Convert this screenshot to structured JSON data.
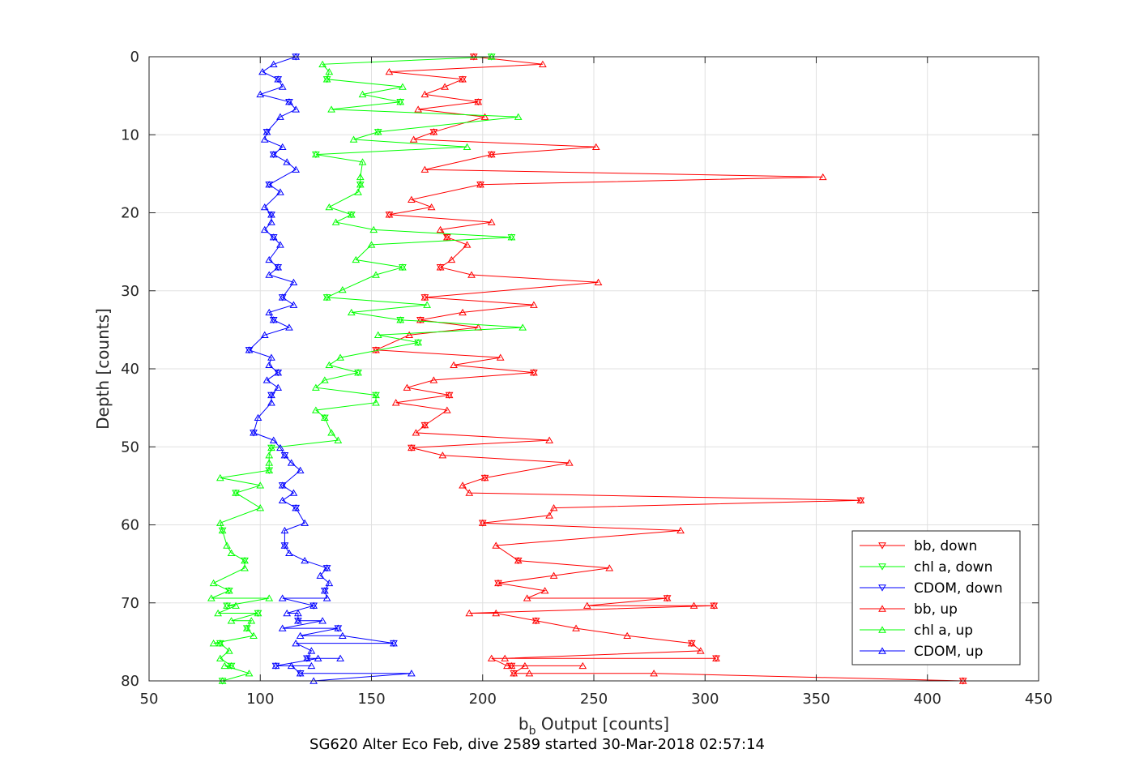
{
  "chart_data": {
    "type": "line",
    "title": "SG620 Alter Eco Feb, dive 2589 started 30-Mar-2018 02:57:14",
    "xlabel_main": "b",
    "xlabel_sub": "b",
    "xlabel_rest": " Output [counts]",
    "ylabel": "Depth [counts]",
    "xlim": [
      50,
      450
    ],
    "ylim": [
      0,
      80
    ],
    "y_reversed": true,
    "grid": true,
    "legend_position": "right",
    "xticks": [
      "50",
      "100",
      "150",
      "200",
      "250",
      "300",
      "350",
      "400",
      "450"
    ],
    "yticks": [
      "0",
      "10",
      "20",
      "30",
      "40",
      "50",
      "60",
      "70",
      "80"
    ],
    "colors": {
      "red": "#ff0000",
      "green": "#00ff00",
      "blue": "#0000ff",
      "axis": "#262626",
      "grid": "#e0e0e0"
    },
    "series": [
      {
        "name": "bb, down",
        "color": "#ff0000",
        "marker": "triangle-down",
        "points": [
          [
            196,
            0
          ],
          [
            227,
            1
          ],
          [
            158,
            2
          ],
          [
            191,
            3
          ],
          [
            183,
            4
          ],
          [
            174,
            5
          ],
          [
            198,
            6
          ],
          [
            171,
            7
          ],
          [
            201,
            8
          ],
          [
            178,
            10
          ],
          [
            169,
            11
          ],
          [
            251,
            12
          ],
          [
            204,
            13
          ],
          [
            174,
            15
          ],
          [
            353,
            16
          ],
          [
            199,
            17
          ],
          [
            168,
            19
          ],
          [
            177,
            20
          ],
          [
            158,
            21
          ],
          [
            204,
            22
          ],
          [
            181,
            23
          ],
          [
            184,
            24
          ],
          [
            193,
            25
          ],
          [
            186,
            27
          ],
          [
            181,
            28
          ],
          [
            195,
            29
          ],
          [
            252,
            30
          ],
          [
            174,
            32
          ],
          [
            223,
            33
          ],
          [
            191,
            34
          ],
          [
            172,
            35
          ],
          [
            198,
            36
          ],
          [
            167,
            37
          ],
          [
            152,
            39
          ],
          [
            208,
            40
          ],
          [
            187,
            41
          ],
          [
            223,
            42
          ],
          [
            178,
            43
          ],
          [
            166,
            44
          ],
          [
            185,
            45
          ],
          [
            161,
            46
          ],
          [
            184,
            47
          ],
          [
            174,
            49
          ],
          [
            170,
            50
          ],
          [
            230,
            51
          ],
          [
            168,
            52
          ],
          [
            182,
            53
          ],
          [
            239,
            54
          ],
          [
            201,
            56
          ],
          [
            191,
            57
          ],
          [
            194,
            58
          ],
          [
            370,
            59
          ],
          [
            232,
            60
          ],
          [
            230,
            61
          ],
          [
            200,
            62
          ],
          [
            289,
            63
          ],
          [
            206,
            65
          ],
          [
            216,
            67
          ],
          [
            257,
            68
          ],
          [
            232,
            69
          ],
          [
            207,
            70
          ],
          [
            228,
            71
          ],
          [
            220,
            72
          ],
          [
            283,
            72
          ],
          [
            247,
            73
          ],
          [
            295,
            73
          ],
          [
            304,
            73
          ],
          [
            194,
            74
          ],
          [
            206,
            74
          ],
          [
            224,
            75
          ],
          [
            242,
            76
          ],
          [
            265,
            77
          ],
          [
            294,
            78
          ],
          [
            298,
            79
          ],
          [
            210,
            80
          ],
          [
            305,
            80
          ],
          [
            204,
            80
          ],
          [
            211,
            81
          ],
          [
            213,
            81
          ],
          [
            245,
            81
          ],
          [
            219,
            81
          ],
          [
            214,
            82
          ],
          [
            221,
            82
          ],
          [
            277,
            82
          ],
          [
            416,
            83
          ]
        ]
      },
      {
        "name": "chl a, down",
        "color": "#00ff00",
        "marker": "triangle-down",
        "points": [
          [
            204,
            0
          ],
          [
            128,
            1
          ],
          [
            131,
            2
          ],
          [
            130,
            3
          ],
          [
            164,
            4
          ],
          [
            146,
            5
          ],
          [
            163,
            6
          ],
          [
            132,
            7
          ],
          [
            216,
            8
          ],
          [
            153,
            10
          ],
          [
            142,
            11
          ],
          [
            193,
            12
          ],
          [
            125,
            13
          ],
          [
            146,
            14
          ],
          [
            145,
            16
          ],
          [
            145,
            17
          ],
          [
            144,
            18
          ],
          [
            131,
            20
          ],
          [
            141,
            21
          ],
          [
            134,
            22
          ],
          [
            151,
            23
          ],
          [
            213,
            24
          ],
          [
            150,
            25
          ],
          [
            143,
            27
          ],
          [
            164,
            28
          ],
          [
            152,
            29
          ],
          [
            137,
            31
          ],
          [
            130,
            32
          ],
          [
            175,
            33
          ],
          [
            141,
            34
          ],
          [
            163,
            35
          ],
          [
            218,
            36
          ],
          [
            153,
            37
          ],
          [
            171,
            38
          ],
          [
            136,
            40
          ],
          [
            131,
            41
          ],
          [
            144,
            42
          ],
          [
            129,
            43
          ],
          [
            125,
            44
          ],
          [
            152,
            45
          ],
          [
            152,
            46
          ],
          [
            125,
            47
          ],
          [
            129,
            48
          ],
          [
            132,
            50
          ],
          [
            135,
            51
          ],
          [
            105,
            52
          ],
          [
            104,
            53
          ],
          [
            104,
            54
          ],
          [
            104,
            55
          ],
          [
            82,
            56
          ],
          [
            100,
            57
          ],
          [
            89,
            58
          ],
          [
            100,
            60
          ],
          [
            82,
            62
          ],
          [
            83,
            63
          ],
          [
            85,
            65
          ],
          [
            87,
            66
          ],
          [
            93,
            67
          ],
          [
            93,
            68
          ],
          [
            79,
            70
          ],
          [
            86,
            71
          ],
          [
            78,
            72
          ],
          [
            104,
            72
          ],
          [
            85,
            73
          ],
          [
            89,
            73
          ],
          [
            81,
            74
          ],
          [
            99,
            74
          ],
          [
            87,
            75
          ],
          [
            96,
            75
          ],
          [
            94,
            76
          ],
          [
            97,
            77
          ],
          [
            79,
            78
          ],
          [
            82,
            78
          ],
          [
            86,
            79
          ],
          [
            82,
            80
          ],
          [
            87,
            81
          ],
          [
            84,
            81
          ],
          [
            95,
            82
          ],
          [
            83,
            83
          ]
        ]
      },
      {
        "name": "CDOM, down",
        "color": "#0000ff",
        "marker": "triangle-down",
        "points": [
          [
            116,
            0
          ],
          [
            106,
            1
          ],
          [
            101,
            2
          ],
          [
            108,
            3
          ],
          [
            110,
            4
          ],
          [
            100,
            5
          ],
          [
            113,
            6
          ],
          [
            116,
            7
          ],
          [
            109,
            8
          ],
          [
            103,
            10
          ],
          [
            102,
            11
          ],
          [
            110,
            12
          ],
          [
            106,
            13
          ],
          [
            112,
            14
          ],
          [
            116,
            15
          ],
          [
            104,
            17
          ],
          [
            109,
            18
          ],
          [
            102,
            20
          ],
          [
            105,
            21
          ],
          [
            105,
            22
          ],
          [
            102,
            23
          ],
          [
            106,
            24
          ],
          [
            109,
            25
          ],
          [
            104,
            27
          ],
          [
            108,
            28
          ],
          [
            104,
            29
          ],
          [
            115,
            30
          ],
          [
            110,
            32
          ],
          [
            115,
            33
          ],
          [
            104,
            34
          ],
          [
            106,
            35
          ],
          [
            113,
            36
          ],
          [
            102,
            37
          ],
          [
            95,
            39
          ],
          [
            105,
            40
          ],
          [
            104,
            41
          ],
          [
            108,
            42
          ],
          [
            103,
            43
          ],
          [
            108,
            44
          ],
          [
            105,
            45
          ],
          [
            105,
            46
          ],
          [
            99,
            48
          ],
          [
            97,
            50
          ],
          [
            106,
            51
          ],
          [
            109,
            52
          ],
          [
            111,
            53
          ],
          [
            114,
            54
          ],
          [
            118,
            55
          ],
          [
            110,
            57
          ],
          [
            115,
            58
          ],
          [
            110,
            59
          ],
          [
            116,
            60
          ],
          [
            120,
            62
          ],
          [
            111,
            63
          ],
          [
            111,
            65
          ],
          [
            113,
            66
          ],
          [
            120,
            67
          ],
          [
            130,
            68
          ],
          [
            127,
            69
          ],
          [
            131,
            70
          ],
          [
            129,
            71
          ],
          [
            130,
            72
          ],
          [
            110,
            72
          ],
          [
            124,
            73
          ],
          [
            112,
            74
          ],
          [
            117,
            74
          ],
          [
            117,
            75
          ],
          [
            128,
            75
          ],
          [
            110,
            76
          ],
          [
            135,
            76
          ],
          [
            118,
            77
          ],
          [
            137,
            77
          ],
          [
            160,
            78
          ],
          [
            116,
            78
          ],
          [
            123,
            79
          ],
          [
            121,
            80
          ],
          [
            136,
            80
          ],
          [
            126,
            80
          ],
          [
            107,
            81
          ],
          [
            123,
            81
          ],
          [
            114,
            81
          ],
          [
            118,
            82
          ],
          [
            168,
            82
          ],
          [
            124,
            83
          ]
        ]
      }
    ]
  },
  "legend": [
    {
      "label": "bb, down",
      "color": "#ff0000",
      "marker": "down"
    },
    {
      "label": "chl a, down",
      "color": "#00ff00",
      "marker": "down"
    },
    {
      "label": "CDOM, down",
      "color": "#0000ff",
      "marker": "down"
    },
    {
      "label": "bb, up",
      "color": "#ff0000",
      "marker": "up"
    },
    {
      "label": "chl a, up",
      "color": "#00ff00",
      "marker": "up"
    },
    {
      "label": "CDOM, up",
      "color": "#0000ff",
      "marker": "up"
    }
  ]
}
